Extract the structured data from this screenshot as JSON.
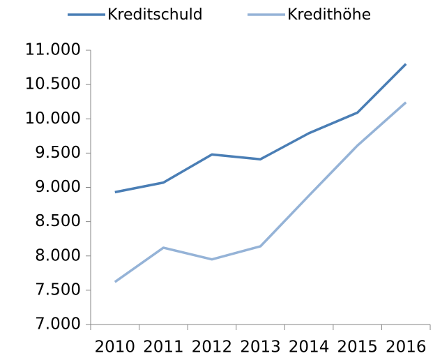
{
  "chart_data": {
    "type": "line",
    "categories": [
      "2010",
      "2011",
      "2012",
      "2013",
      "2014",
      "2015",
      "2016"
    ],
    "series": [
      {
        "name": "Kreditschuld",
        "color": "#4a7eb5",
        "values": [
          8930,
          9070,
          9480,
          9410,
          9790,
          10090,
          10800
        ]
      },
      {
        "name": "Kredithöhe",
        "color": "#95b3d7",
        "values": [
          7620,
          8120,
          7950,
          8140,
          8880,
          9610,
          10240
        ]
      }
    ],
    "ylim": [
      7000,
      11000
    ],
    "yticks": [
      {
        "value": 7000,
        "label": "7.000"
      },
      {
        "value": 7500,
        "label": "7.500"
      },
      {
        "value": 8000,
        "label": "8.000"
      },
      {
        "value": 8500,
        "label": "8.500"
      },
      {
        "value": 9000,
        "label": "9.000"
      },
      {
        "value": 9500,
        "label": "9.500"
      },
      {
        "value": 10000,
        "label": "10.000"
      },
      {
        "value": 10500,
        "label": "10.500"
      },
      {
        "value": 11000,
        "label": "11.000"
      }
    ],
    "grid": false,
    "legend": "top"
  }
}
